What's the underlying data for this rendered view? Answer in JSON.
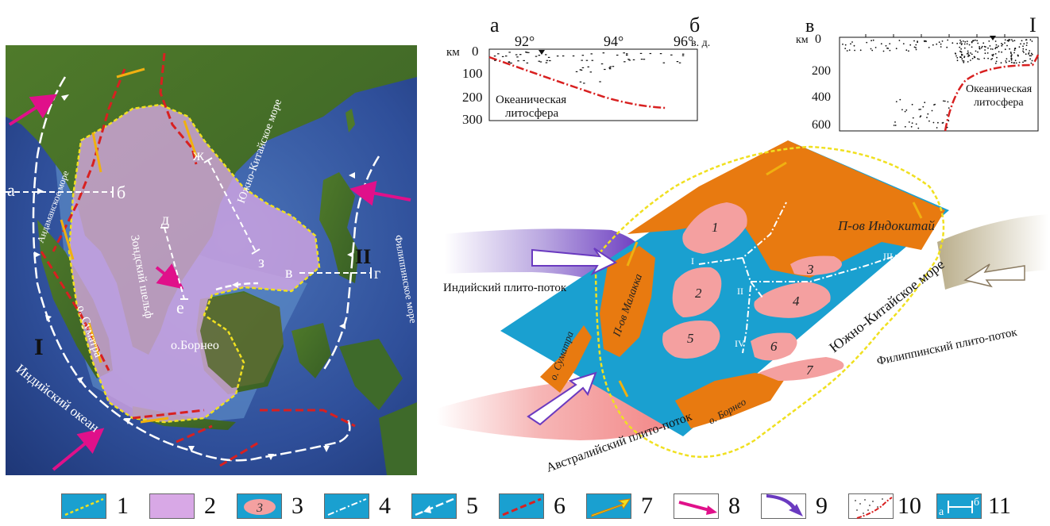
{
  "map": {
    "profile_a": "а",
    "profile_b": "б",
    "profile_d": "д",
    "profile_e": "е",
    "profile_zh": "ж",
    "profile_z": "з",
    "profile_v": "в",
    "profile_g": "г",
    "roman_I": "I",
    "roman_II": "II",
    "sea_andaman": "Андаманское море",
    "sea_south_china": "Южно-Китайское море",
    "sea_philippine": "Филиппинское море",
    "sumatra": "о. Суматра",
    "sunda_shelf": "Зондский шельф",
    "borneo": "о.Борнео",
    "indian_ocean": "Индийский океан"
  },
  "profile1": {
    "left_letter": "а",
    "right_letter": "б",
    "lon_92": "92°",
    "lon_94": "94°",
    "lon_96": "96°",
    "lon_unit": "в. д.",
    "depth_unit": "км",
    "d0": "0",
    "d100": "100",
    "d200": "200",
    "d300": "300",
    "label_line1": "Океаническая",
    "label_line2": "литосфера"
  },
  "profile2": {
    "left_letter": "в",
    "right_letter": "I",
    "depth_unit": "км",
    "d0": "0",
    "d200": "200",
    "d400": "400",
    "d600": "600",
    "label_line1": "Океаническая",
    "label_line2": "литосфера"
  },
  "block": {
    "indochina": "П-ов Индокитай",
    "malacca": "П-ов Малакка",
    "sumatra": "о. Суматра",
    "borneo": "о. Борнео",
    "south_china_sea": "Южно-Китайское море",
    "indian_flow": "Индийский плито-поток",
    "philippine_flow": "Филиппинский плито-поток",
    "australian_flow": "Австралийский плито-поток",
    "n1": "1",
    "n2": "2",
    "n3": "3",
    "n4": "4",
    "n5": "5",
    "n6": "6",
    "n7": "7",
    "r1": "I",
    "r2": "II",
    "r3": "III",
    "r4": "IV"
  },
  "legend": {
    "items": [
      {
        "num": "1"
      },
      {
        "num": "2"
      },
      {
        "num": "3",
        "inner": "3"
      },
      {
        "num": "4"
      },
      {
        "num": "5"
      },
      {
        "num": "6"
      },
      {
        "num": "7"
      },
      {
        "num": "8"
      },
      {
        "num": "9"
      },
      {
        "num": "10"
      },
      {
        "num": "11",
        "inner_a": "а",
        "inner_b": "б"
      }
    ]
  },
  "colors": {
    "sea_blue": "#1aa0d0",
    "land_orange": "#e87a10",
    "block_pink": "#f4a0a0",
    "shelf_violet": "#d8a8e6",
    "boundary_yellow": "#f0e020",
    "fault_red": "#d82020",
    "arrow_magenta": "#e0108a",
    "profile_red": "#d82020"
  }
}
